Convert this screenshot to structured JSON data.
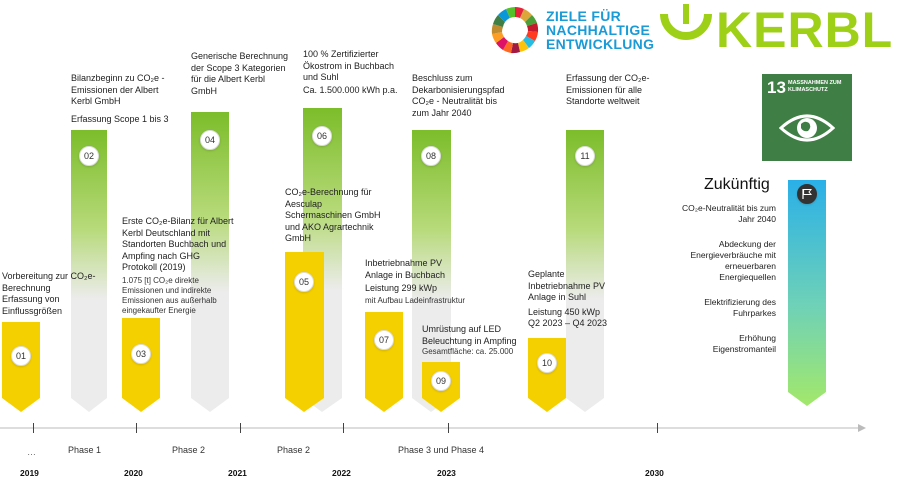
{
  "logos": {
    "sdg_line1": "ZIELE FÜR",
    "sdg_line2": "NACHHALTIGE",
    "sdg_line3": "ENTWICKLUNG",
    "brand": "KERBL",
    "sdg13_number": "13",
    "sdg13_title_line1": "MASSNAHMEN ZUM",
    "sdg13_title_line2": "KLIMASCHUTZ"
  },
  "milestones": [
    {
      "num": "01",
      "lines": [
        "Vorbereitung zur CO₂e-",
        "Berechnung",
        "Erfassung von",
        "Einflussgrößen"
      ]
    },
    {
      "num": "02",
      "lines": [
        "Bilanzbeginn zu CO₂e -",
        "Emissionen der Albert",
        "Kerbl GmbH",
        "",
        "Erfassung Scope 1 bis 3"
      ]
    },
    {
      "num": "03",
      "lines": [
        "Erste CO₂e-Bilanz für Albert",
        "Kerbl Deutschland mit",
        "Standorten Buchbach und",
        "Ampfing nach GHG",
        "Protokoll (2019)"
      ],
      "sub": [
        "1.075 [t] CO₂e direkte",
        "Emissionen und indirekte",
        "Emissionen aus außerhalb",
        "eingekaufter Energie"
      ]
    },
    {
      "num": "04",
      "lines": [
        "Generische Berechnung",
        "der Scope 3 Kategorien",
        "für die Albert Kerbl",
        "GmbH"
      ]
    },
    {
      "num": "05",
      "lines": [
        "CO₂e-Berechnung für",
        "Aesculap",
        "Schermaschinen GmbH",
        "und AKO Agrartechnik",
        "GmbH"
      ]
    },
    {
      "num": "06",
      "lines": [
        "100 % Zertifizierter",
        "Ökostrom in Buchbach",
        "und Suhl",
        "Ca. 1.500.000 kWh p.a."
      ]
    },
    {
      "num": "07",
      "lines": [
        "Inbetriebnahme PV",
        "Anlage in Buchbach",
        "Leistung 299 kWp"
      ],
      "sub": [
        "mit Aufbau Ladeinfrastruktur"
      ]
    },
    {
      "num": "08",
      "lines": [
        "Beschluss zum",
        "Dekarbonisierungspfad",
        "CO₂e - Neutralität bis",
        "zum Jahr 2040"
      ]
    },
    {
      "num": "09",
      "lines": [
        "Umrüstung auf LED",
        "Beleuchtung in Ampfing"
      ],
      "sub": [
        "Gesamtfläche: ca. 25.000"
      ]
    },
    {
      "num": "10",
      "lines": [
        "Geplante",
        "Inbetriebnahme PV",
        "Anlage in Suhl",
        "Leistung 450 kWp",
        "Q2 2023  – Q4 2023"
      ]
    },
    {
      "num": "11",
      "lines": [
        "Erfassung der CO₂e-",
        "Emissionen für alle",
        "Standorte weltweit"
      ]
    }
  ],
  "future": {
    "title": "Zukünftig",
    "items": [
      [
        "CO₂e-Neutralität bis zum",
        "Jahr 2040"
      ],
      [
        "Abdeckung der",
        "Energieverbräuche mit",
        "erneuerbaren",
        "Energiequellen"
      ],
      [
        "Elektrifizierung des",
        "Fuhrparkes"
      ],
      [
        "Erhöhung",
        "Eigenstromanteil"
      ]
    ]
  },
  "timeline": {
    "ellipsis": "…",
    "phases": [
      "Phase 1",
      "Phase 2",
      "Phase 2",
      "Phase 3 und Phase 4"
    ],
    "years": [
      "2019",
      "2020",
      "2021",
      "2022",
      "2023",
      "2030"
    ]
  },
  "colors": {
    "green": "#7cbd2a",
    "yellow": "#f5d000",
    "sdg13": "#3f7e44",
    "blue": "#2bb0e6"
  }
}
